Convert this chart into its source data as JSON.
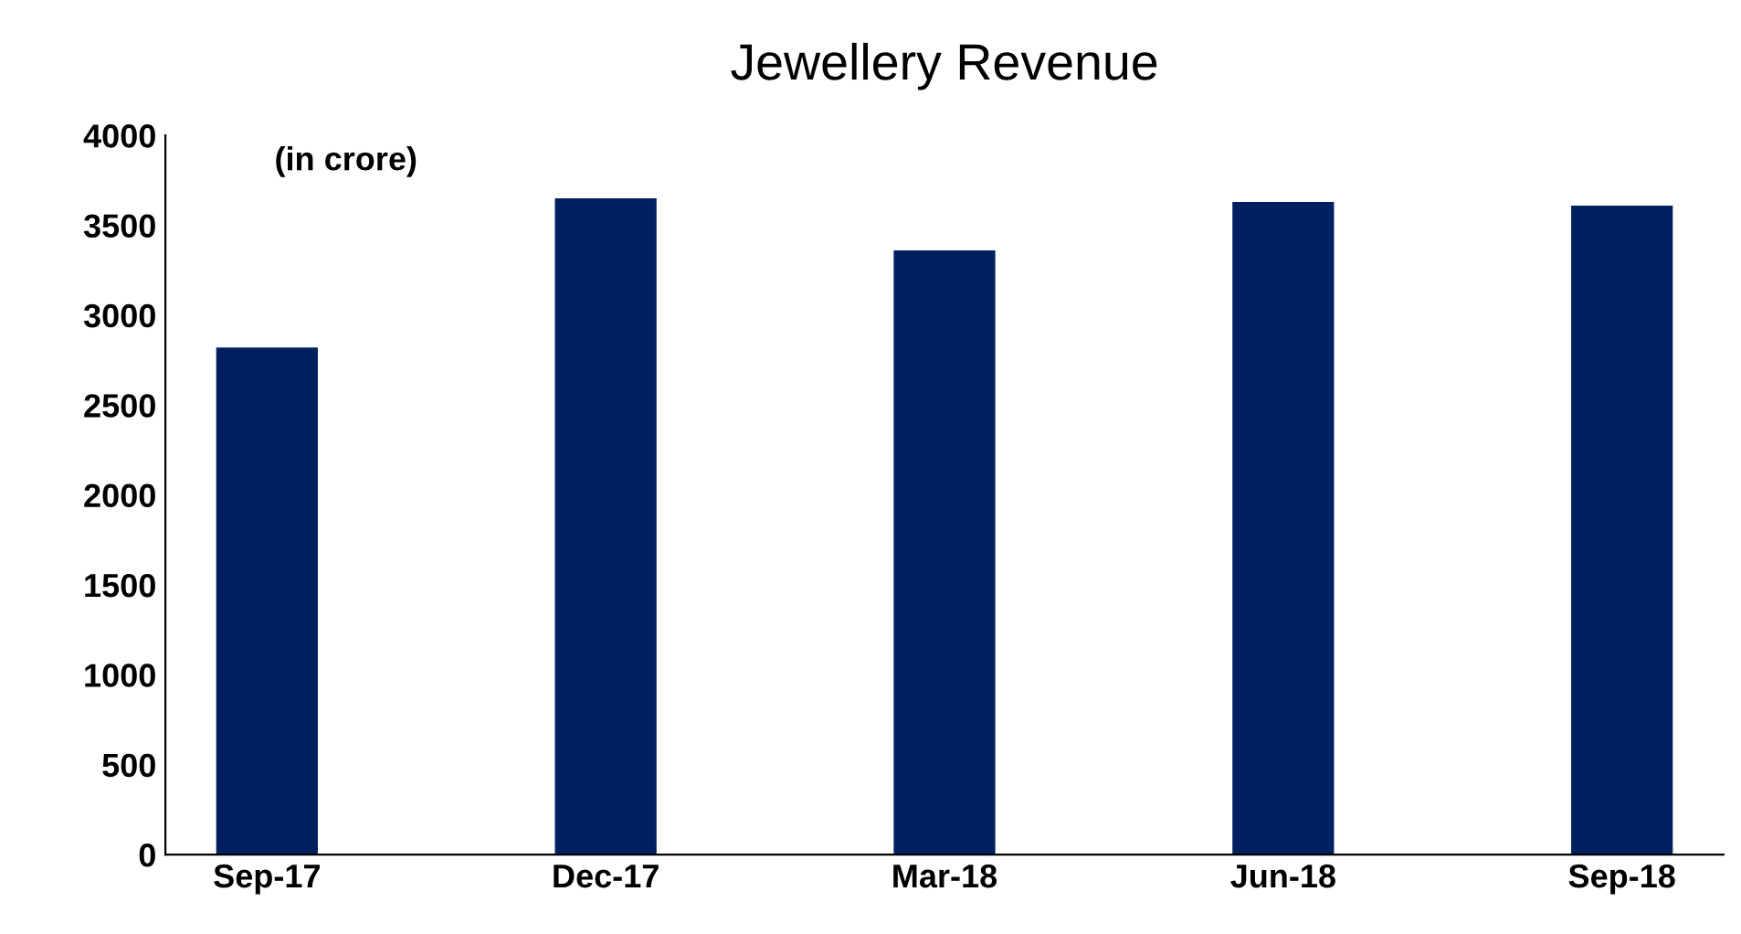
{
  "chart_data": {
    "type": "bar",
    "title": "Jewellery Revenue",
    "categories": [
      "Sep-17",
      "Dec-17",
      "Mar-18",
      "Jun-18",
      "Sep-18"
    ],
    "values": [
      2820,
      3650,
      3360,
      3630,
      3610
    ],
    "color": "#002060",
    "ylim": [
      0,
      4000
    ],
    "yticks": [
      0,
      500,
      1000,
      1500,
      2000,
      2500,
      3000,
      3500,
      4000
    ],
    "annotations": [
      "(in crore)"
    ],
    "grid": false,
    "legend": false
  }
}
